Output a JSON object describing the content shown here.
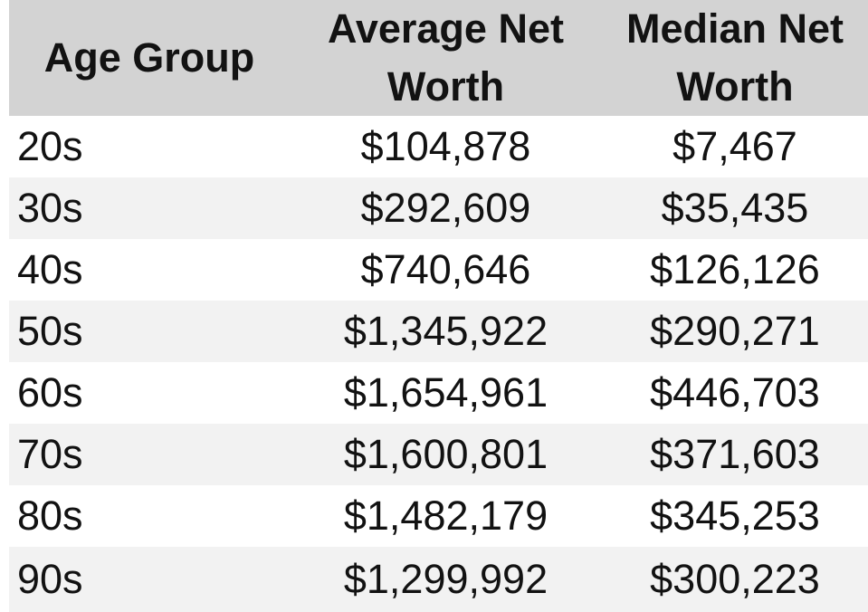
{
  "colors": {
    "header_bg": "#d3d3d3",
    "row_bg": "#ffffff",
    "row_alt_bg": "#f2f2f2",
    "text": "#121212"
  },
  "chart_data": {
    "type": "table",
    "columns": [
      "Age Group",
      "Average Net Worth",
      "Median Net Worth"
    ],
    "categories": [
      "20s",
      "30s",
      "40s",
      "50s",
      "60s",
      "70s",
      "80s",
      "90s"
    ],
    "series": [
      {
        "name": "Average Net Worth",
        "values": [
          104878,
          292609,
          740646,
          1345922,
          1654961,
          1600801,
          1482179,
          1299992
        ]
      },
      {
        "name": "Median Net Worth",
        "values": [
          7467,
          35435,
          126126,
          290271,
          446703,
          371603,
          345253,
          300223
        ]
      }
    ],
    "rows": [
      {
        "age": "20s",
        "avg": "$104,878",
        "median": "$7,467"
      },
      {
        "age": "30s",
        "avg": "$292,609",
        "median": "$35,435"
      },
      {
        "age": "40s",
        "avg": "$740,646",
        "median": "$126,126"
      },
      {
        "age": "50s",
        "avg": "$1,345,922",
        "median": "$290,271"
      },
      {
        "age": "60s",
        "avg": "$1,654,961",
        "median": "$446,703"
      },
      {
        "age": "70s",
        "avg": "$1,600,801",
        "median": "$371,603"
      },
      {
        "age": "80s",
        "avg": "$1,482,179",
        "median": "$345,253"
      },
      {
        "age": "90s",
        "avg": "$1,299,992",
        "median": "$300,223"
      }
    ]
  }
}
